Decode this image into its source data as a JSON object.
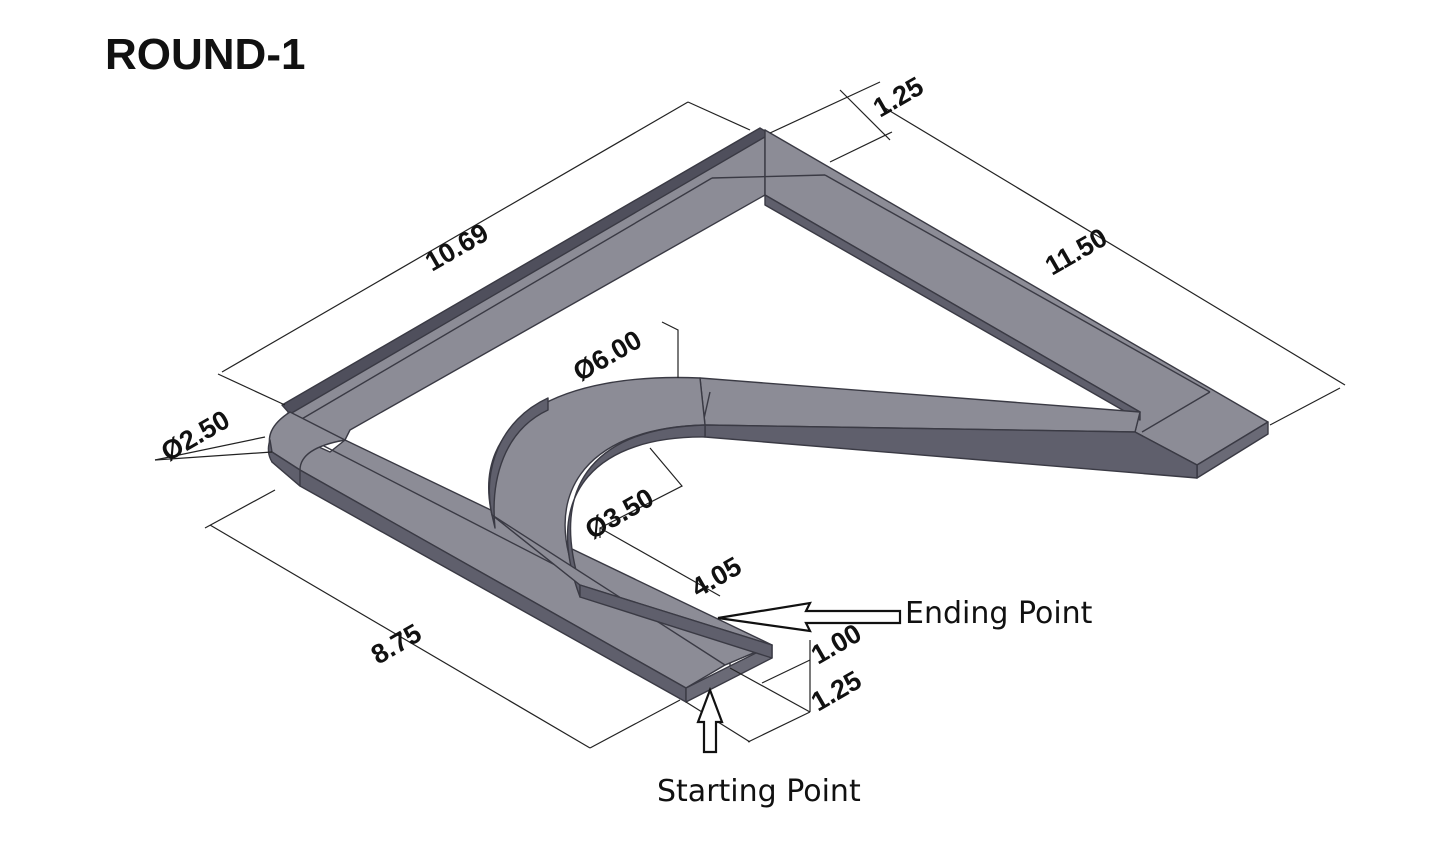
{
  "title": "ROUND-1",
  "dimensions": {
    "top_left_length": "10.69",
    "top_offset": "1.25",
    "right_length": "11.50",
    "outer_corner_diameter": "Ø2.50",
    "large_arc_diameter": "Ø6.00",
    "small_arc_diameter": "Ø3.50",
    "inner_leg_length": "4.05",
    "left_leg_length": "8.75",
    "inner_width": "1.00",
    "outer_width": "1.25"
  },
  "annotations": {
    "ending_point": "Ending Point",
    "starting_point": "Starting Point"
  },
  "colors": {
    "top_face": "#8c8c96",
    "side_face": "#5f5f6c",
    "dark_side": "#4f4f5c",
    "edge": "#3a3a44"
  }
}
